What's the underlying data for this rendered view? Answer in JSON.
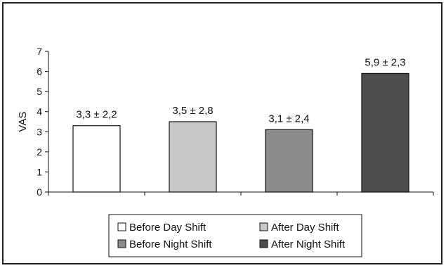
{
  "chart_data": {
    "type": "bar",
    "title": "",
    "xlabel": "",
    "ylabel": "VAS",
    "ylim": [
      0,
      7
    ],
    "yticks": [
      "0",
      "1",
      "2",
      "3",
      "4",
      "5",
      "6",
      "7"
    ],
    "categories": [
      "Before Day Shift",
      "After Day Shift",
      "Before Night Shift",
      "After Night Shift"
    ],
    "values": [
      3.3,
      3.5,
      3.1,
      5.9
    ],
    "data_labels": [
      "3,3 ± 2,2",
      "3,5 ± 2,8",
      "3,1 ± 2,4",
      "5,9 ± 2,3"
    ],
    "colors": [
      "#ffffff",
      "#c8c8c8",
      "#8c8c8c",
      "#4d4d4d"
    ],
    "grid": false,
    "legend_position": "bottom"
  }
}
